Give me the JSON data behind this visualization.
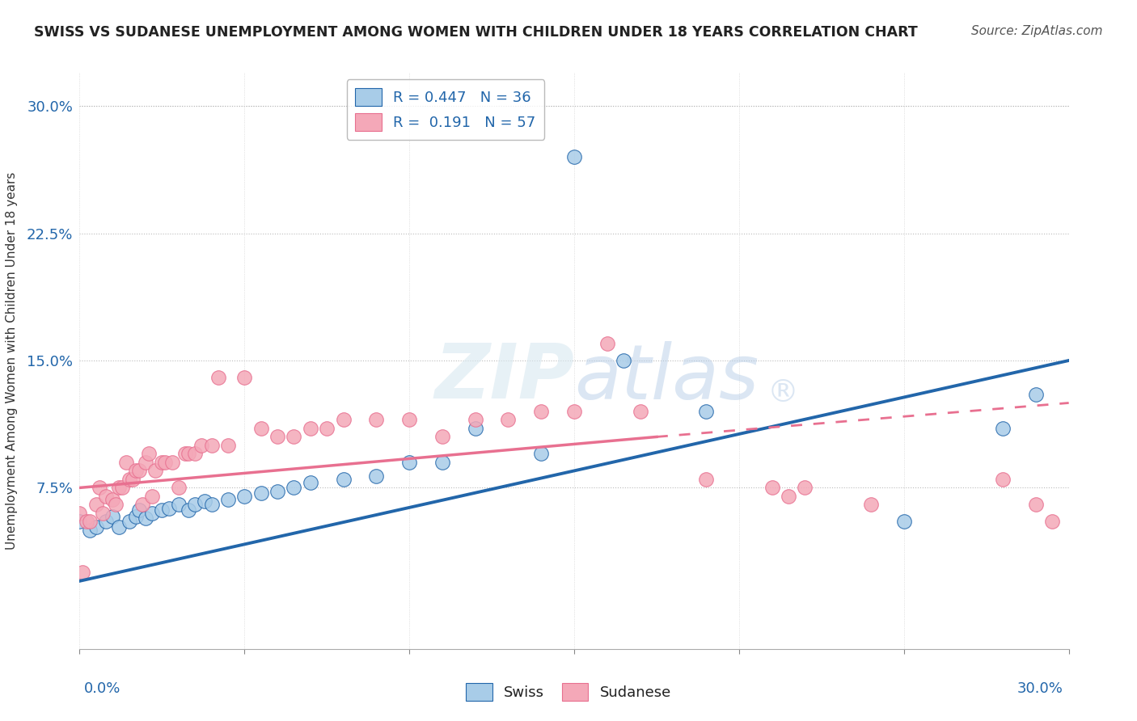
{
  "title": "SWISS VS SUDANESE UNEMPLOYMENT AMONG WOMEN WITH CHILDREN UNDER 18 YEARS CORRELATION CHART",
  "source": "Source: ZipAtlas.com",
  "ylabel": "Unemployment Among Women with Children Under 18 years",
  "xlim": [
    0.0,
    0.3
  ],
  "ylim": [
    -0.02,
    0.32
  ],
  "swiss_color": "#a8cce8",
  "sudanese_color": "#f4a8b8",
  "line_swiss_color": "#2266aa",
  "line_sudanese_color": "#e87090",
  "swiss_scatter_x": [
    0.0,
    0.003,
    0.005,
    0.008,
    0.01,
    0.012,
    0.015,
    0.017,
    0.018,
    0.02,
    0.022,
    0.025,
    0.027,
    0.03,
    0.033,
    0.035,
    0.038,
    0.04,
    0.045,
    0.05,
    0.055,
    0.06,
    0.065,
    0.07,
    0.08,
    0.09,
    0.1,
    0.11,
    0.12,
    0.14,
    0.15,
    0.165,
    0.19,
    0.25,
    0.28,
    0.29
  ],
  "swiss_scatter_y": [
    0.055,
    0.05,
    0.052,
    0.055,
    0.058,
    0.052,
    0.055,
    0.058,
    0.062,
    0.057,
    0.06,
    0.062,
    0.063,
    0.065,
    0.062,
    0.065,
    0.067,
    0.065,
    0.068,
    0.07,
    0.072,
    0.073,
    0.075,
    0.078,
    0.08,
    0.082,
    0.09,
    0.09,
    0.11,
    0.095,
    0.27,
    0.15,
    0.12,
    0.055,
    0.11,
    0.13
  ],
  "sudanese_scatter_x": [
    0.0,
    0.001,
    0.002,
    0.003,
    0.005,
    0.006,
    0.007,
    0.008,
    0.01,
    0.011,
    0.012,
    0.013,
    0.014,
    0.015,
    0.016,
    0.017,
    0.018,
    0.019,
    0.02,
    0.021,
    0.022,
    0.023,
    0.025,
    0.026,
    0.028,
    0.03,
    0.032,
    0.033,
    0.035,
    0.037,
    0.04,
    0.042,
    0.045,
    0.05,
    0.055,
    0.06,
    0.065,
    0.07,
    0.075,
    0.08,
    0.09,
    0.1,
    0.11,
    0.12,
    0.13,
    0.14,
    0.15,
    0.16,
    0.17,
    0.19,
    0.21,
    0.215,
    0.22,
    0.24,
    0.28,
    0.29,
    0.295
  ],
  "sudanese_scatter_y": [
    0.06,
    0.025,
    0.055,
    0.055,
    0.065,
    0.075,
    0.06,
    0.07,
    0.068,
    0.065,
    0.075,
    0.075,
    0.09,
    0.08,
    0.08,
    0.085,
    0.085,
    0.065,
    0.09,
    0.095,
    0.07,
    0.085,
    0.09,
    0.09,
    0.09,
    0.075,
    0.095,
    0.095,
    0.095,
    0.1,
    0.1,
    0.14,
    0.1,
    0.14,
    0.11,
    0.105,
    0.105,
    0.11,
    0.11,
    0.115,
    0.115,
    0.115,
    0.105,
    0.115,
    0.115,
    0.12,
    0.12,
    0.16,
    0.12,
    0.08,
    0.075,
    0.07,
    0.075,
    0.065,
    0.08,
    0.065,
    0.055
  ],
  "swiss_line_x0": 0.0,
  "swiss_line_y0": 0.02,
  "swiss_line_x1": 0.3,
  "swiss_line_y1": 0.15,
  "sudanese_line_solid_x0": 0.0,
  "sudanese_line_solid_y0": 0.075,
  "sudanese_line_cross_x": 0.175,
  "sudanese_line_cross_y": 0.105,
  "sudanese_line_dashed_x1": 0.3,
  "sudanese_line_dashed_y1": 0.125
}
